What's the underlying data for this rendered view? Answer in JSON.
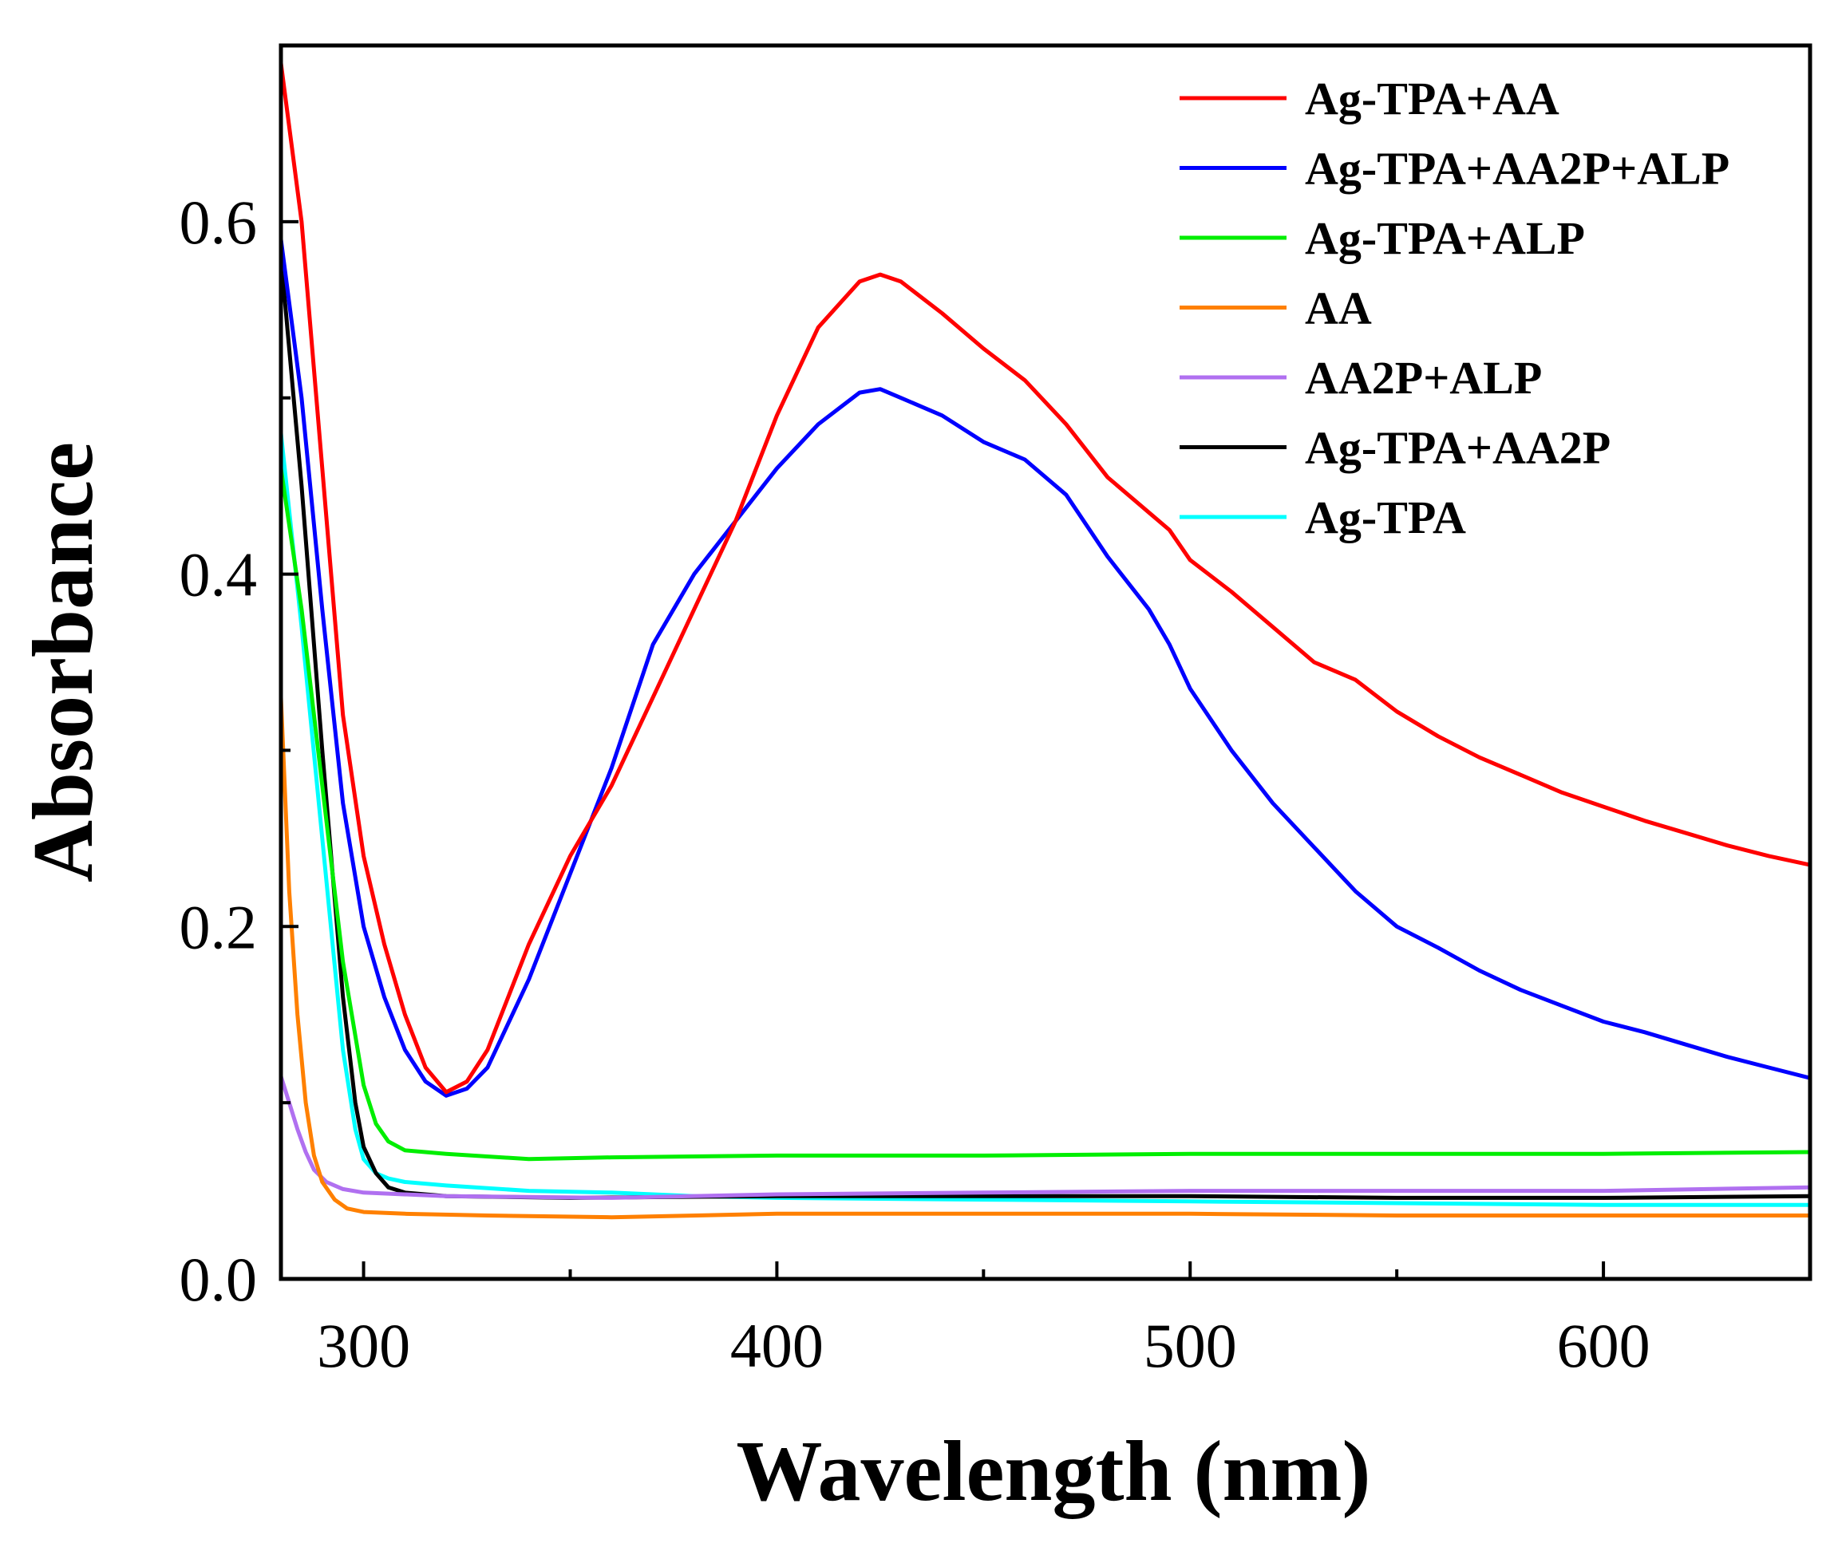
{
  "chart_data": {
    "type": "line",
    "title": "",
    "xlabel": "Wavelength (nm)",
    "ylabel": "Absorbance",
    "xlim": [
      280,
      650
    ],
    "ylim": [
      0.0,
      0.7
    ],
    "xticks": [
      300,
      400,
      500,
      600
    ],
    "xtick_labels": [
      "300",
      "400",
      "500",
      "600"
    ],
    "yticks": [
      0.0,
      0.2,
      0.4,
      0.6
    ],
    "ytick_labels": [
      "0.0",
      "0.2",
      "0.4",
      "0.6"
    ],
    "grid": false,
    "legend_position": "top-right",
    "series": [
      {
        "name": "Ag-TPA+AA",
        "color": "#ff0000",
        "x": [
          280,
          285,
          290,
          295,
          300,
          305,
          310,
          315,
          320,
          325,
          330,
          340,
          350,
          360,
          370,
          380,
          390,
          400,
          410,
          420,
          425,
          430,
          440,
          450,
          460,
          470,
          480,
          490,
          495,
          500,
          510,
          520,
          530,
          540,
          550,
          560,
          570,
          580,
          590,
          600,
          610,
          620,
          630,
          640,
          650
        ],
        "y": [
          0.69,
          0.6,
          0.46,
          0.32,
          0.24,
          0.19,
          0.15,
          0.12,
          0.106,
          0.112,
          0.13,
          0.19,
          0.24,
          0.28,
          0.33,
          0.38,
          0.43,
          0.49,
          0.54,
          0.566,
          0.57,
          0.566,
          0.548,
          0.528,
          0.51,
          0.485,
          0.455,
          0.435,
          0.425,
          0.408,
          0.39,
          0.37,
          0.35,
          0.34,
          0.322,
          0.308,
          0.296,
          0.286,
          0.276,
          0.268,
          0.26,
          0.253,
          0.246,
          0.24,
          0.235
        ]
      },
      {
        "name": "Ag-TPA+AA2P+ALP",
        "color": "#0000ff",
        "x": [
          280,
          285,
          290,
          295,
          300,
          305,
          310,
          315,
          320,
          325,
          330,
          340,
          350,
          360,
          370,
          380,
          390,
          400,
          410,
          420,
          425,
          430,
          440,
          450,
          460,
          470,
          480,
          490,
          495,
          500,
          510,
          520,
          530,
          540,
          550,
          560,
          570,
          580,
          590,
          600,
          610,
          620,
          630,
          640,
          650
        ],
        "y": [
          0.59,
          0.5,
          0.38,
          0.27,
          0.2,
          0.16,
          0.13,
          0.112,
          0.104,
          0.108,
          0.12,
          0.17,
          0.23,
          0.29,
          0.36,
          0.4,
          0.43,
          0.46,
          0.485,
          0.503,
          0.505,
          0.5,
          0.49,
          0.475,
          0.465,
          0.445,
          0.41,
          0.38,
          0.36,
          0.335,
          0.3,
          0.27,
          0.245,
          0.22,
          0.2,
          0.188,
          0.175,
          0.164,
          0.155,
          0.146,
          0.14,
          0.133,
          0.126,
          0.12,
          0.114
        ]
      },
      {
        "name": "Ag-TPA+ALP",
        "color": "#00ee00",
        "x": [
          280,
          285,
          290,
          295,
          300,
          303,
          306,
          310,
          320,
          340,
          360,
          400,
          450,
          500,
          550,
          600,
          650
        ],
        "y": [
          0.46,
          0.38,
          0.28,
          0.18,
          0.11,
          0.088,
          0.078,
          0.073,
          0.071,
          0.068,
          0.069,
          0.07,
          0.07,
          0.071,
          0.071,
          0.071,
          0.072
        ]
      },
      {
        "name": "AA",
        "color": "#ff8000",
        "x": [
          280,
          282,
          284,
          286,
          288,
          290,
          293,
          296,
          300,
          310,
          330,
          360,
          400,
          450,
          500,
          550,
          600,
          650
        ],
        "y": [
          0.33,
          0.22,
          0.15,
          0.1,
          0.07,
          0.055,
          0.045,
          0.04,
          0.038,
          0.037,
          0.036,
          0.035,
          0.037,
          0.037,
          0.037,
          0.036,
          0.036,
          0.036
        ]
      },
      {
        "name": "AA2P+ALP",
        "color": "#b070f0",
        "x": [
          280,
          282,
          284,
          286,
          288,
          291,
          295,
          300,
          320,
          360,
          400,
          450,
          500,
          550,
          600,
          650
        ],
        "y": [
          0.115,
          0.1,
          0.085,
          0.072,
          0.062,
          0.055,
          0.051,
          0.049,
          0.047,
          0.046,
          0.048,
          0.049,
          0.05,
          0.05,
          0.05,
          0.052
        ]
      },
      {
        "name": "Ag-TPA+AA2P",
        "color": "#000000",
        "x": [
          280,
          285,
          290,
          295,
          298,
          300,
          303,
          306,
          310,
          320,
          350,
          400,
          450,
          500,
          550,
          600,
          650
        ],
        "y": [
          0.58,
          0.45,
          0.3,
          0.16,
          0.1,
          0.075,
          0.06,
          0.052,
          0.049,
          0.047,
          0.046,
          0.047,
          0.047,
          0.047,
          0.046,
          0.046,
          0.047
        ]
      },
      {
        "name": "Ag-TPA",
        "color": "#00ffff",
        "x": [
          280,
          285,
          290,
          295,
          298,
          300,
          303,
          306,
          310,
          320,
          340,
          360,
          380,
          400,
          450,
          500,
          550,
          600,
          650
        ],
        "y": [
          0.48,
          0.37,
          0.25,
          0.13,
          0.085,
          0.068,
          0.06,
          0.057,
          0.055,
          0.053,
          0.05,
          0.049,
          0.047,
          0.046,
          0.045,
          0.044,
          0.043,
          0.042,
          0.042
        ]
      }
    ]
  }
}
